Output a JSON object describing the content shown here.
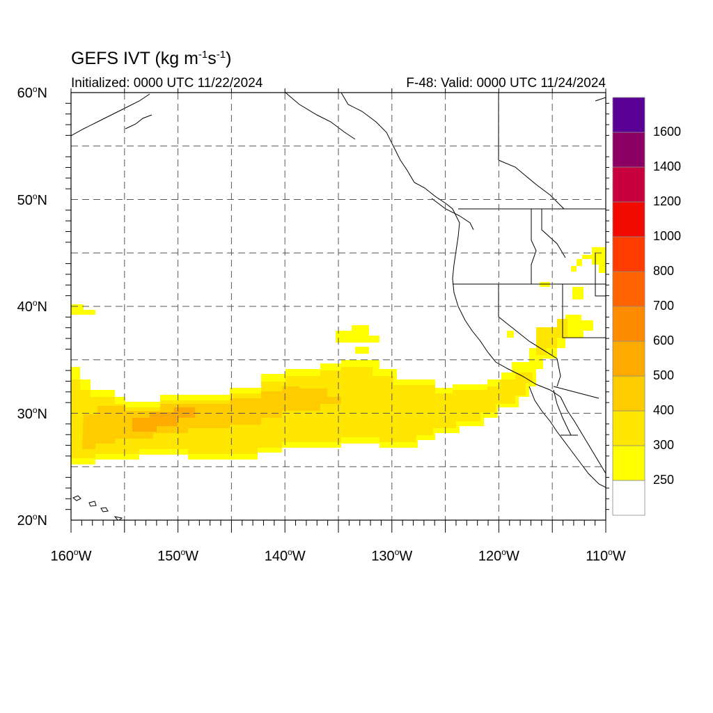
{
  "title": {
    "prefix": "GEFS IVT (kg m",
    "exp1": "-1",
    "middle": "s",
    "exp2": "-1",
    "suffix": ")"
  },
  "subtitle_left": "Initialized: 0000 UTC 11/22/2024",
  "subtitle_right": "F-48: Valid: 0000 UTC 11/24/2024",
  "lat_labels": [
    {
      "value": 60,
      "text": "60",
      "suffix": "N"
    },
    {
      "value": 50,
      "text": "50",
      "suffix": "N"
    },
    {
      "value": 40,
      "text": "40",
      "suffix": "N"
    },
    {
      "value": 30,
      "text": "30",
      "suffix": "N"
    },
    {
      "value": 20,
      "text": "20",
      "suffix": "N"
    }
  ],
  "lon_labels": [
    {
      "value": -160,
      "text": "160",
      "suffix": "W"
    },
    {
      "value": -150,
      "text": "150",
      "suffix": "W"
    },
    {
      "value": -140,
      "text": "140",
      "suffix": "W"
    },
    {
      "value": -130,
      "text": "130",
      "suffix": "W"
    },
    {
      "value": -120,
      "text": "120",
      "suffix": "W"
    },
    {
      "value": -110,
      "text": "110",
      "suffix": "W"
    }
  ],
  "map_extent": {
    "lon_min": -160,
    "lon_max": -110,
    "lat_min": 20,
    "lat_max": 60
  },
  "colorbar": {
    "colors": [
      "#ffffff",
      "#ffff00",
      "#ffe600",
      "#ffcc00",
      "#ffaa00",
      "#ff8c00",
      "#ff6400",
      "#ff3c00",
      "#f00a00",
      "#c8003c",
      "#8c0064",
      "#5a0096"
    ],
    "labels": [
      "250",
      "300",
      "400",
      "500",
      "600",
      "700",
      "800",
      "1000",
      "1200",
      "1400",
      "1600"
    ]
  },
  "ivt_colors": {
    "250": "#ffff00",
    "300": "#ffe600",
    "400": "#ffcc00",
    "500": "#ffaa00"
  }
}
